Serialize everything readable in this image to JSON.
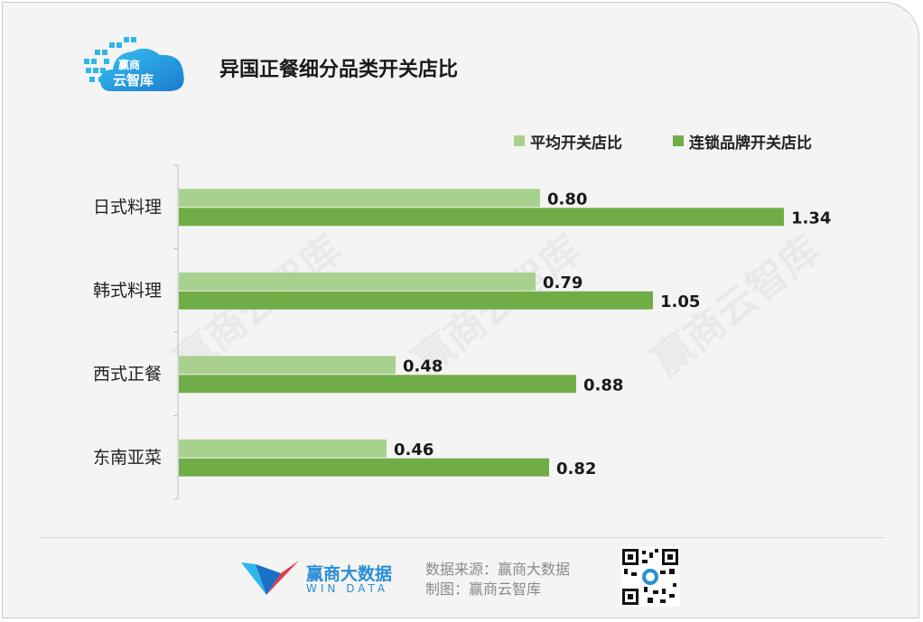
{
  "header": {
    "logo_line1": "赢商",
    "logo_line2": "云智库",
    "title": "异国正餐细分品类开关店比"
  },
  "legend": {
    "items": [
      {
        "label": "平均开关店比",
        "color": "#a9d18e"
      },
      {
        "label": "连锁品牌开关店比",
        "color": "#70ad47"
      }
    ]
  },
  "chart_data": {
    "type": "bar",
    "orientation": "horizontal",
    "categories": [
      "日式料理",
      "韩式料理",
      "西式正餐",
      "东南亚菜"
    ],
    "series": [
      {
        "name": "平均开关店比",
        "color": "#a9d18e",
        "values": [
          0.8,
          0.79,
          0.48,
          0.46
        ]
      },
      {
        "name": "连锁品牌开关店比",
        "color": "#70ad47",
        "values": [
          1.34,
          1.05,
          0.88,
          0.82
        ]
      }
    ],
    "xlim": [
      0,
      1.34
    ],
    "data_labels": true,
    "grid": false,
    "legend_position": "top-right"
  },
  "watermark": "赢商云智库",
  "footer": {
    "brand_name": "赢商大数据",
    "brand_sub": "WIN DATA",
    "source_line": "数据来源：赢商大数据",
    "made_by_line": "制图：赢商云智库"
  }
}
